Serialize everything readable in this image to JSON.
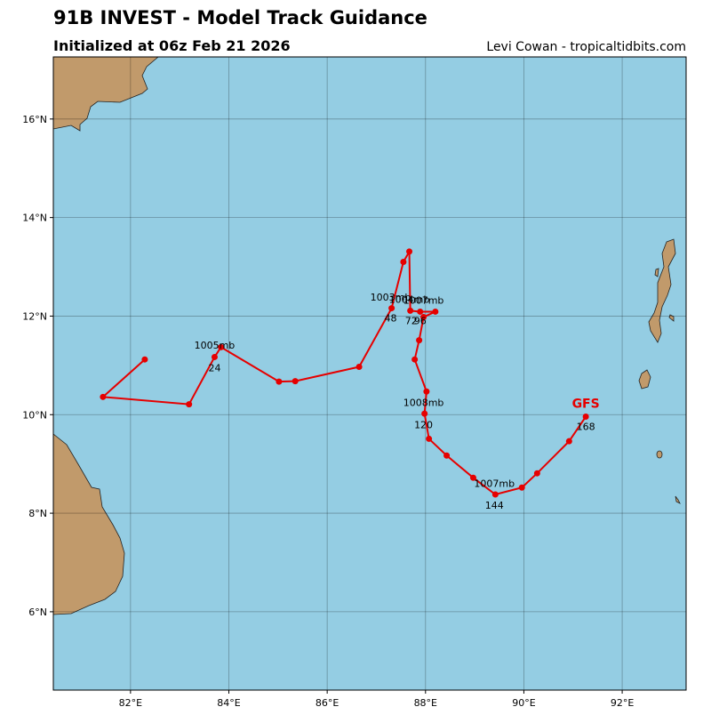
{
  "chart_data": {
    "type": "track-map",
    "title": "91B INVEST - Model Track Guidance",
    "subtitle": "Initialized at 06z Feb 21 2026",
    "credit": "Levi Cowan - tropicaltidbits.com",
    "xlim": [
      80.43,
      93.3
    ],
    "ylim": [
      4.41,
      17.26
    ],
    "xticks": [
      {
        "value": 82,
        "label": "82°E"
      },
      {
        "value": 84,
        "label": "84°E"
      },
      {
        "value": 86,
        "label": "86°E"
      },
      {
        "value": 88,
        "label": "88°E"
      },
      {
        "value": 90,
        "label": "90°E"
      },
      {
        "value": 92,
        "label": "92°E"
      }
    ],
    "yticks": [
      {
        "value": 6,
        "label": "6°N"
      },
      {
        "value": 8,
        "label": "8°N"
      },
      {
        "value": 10,
        "label": "10°N"
      },
      {
        "value": 12,
        "label": "12°N"
      },
      {
        "value": 14,
        "label": "14°N"
      },
      {
        "value": 16,
        "label": "16°N"
      }
    ],
    "grid": true,
    "series": [
      {
        "name": "GFS",
        "color": "#e60000",
        "lon": [
          82.29,
          81.44,
          83.19,
          83.71,
          83.84,
          85.02,
          85.35,
          86.65,
          87.31,
          87.55,
          87.67,
          87.69,
          87.89,
          88.2,
          87.96,
          87.87,
          87.78,
          88.02,
          87.98,
          88.07,
          88.43,
          88.97,
          89.42,
          89.96,
          90.27,
          90.92,
          91.26
        ],
        "lat": [
          11.12,
          10.36,
          10.21,
          11.17,
          11.37,
          10.67,
          10.68,
          10.97,
          12.16,
          13.1,
          13.31,
          12.11,
          12.09,
          12.09,
          11.98,
          11.51,
          11.12,
          10.47,
          10.02,
          9.51,
          9.17,
          8.72,
          8.38,
          8.52,
          8.81,
          9.46,
          9.96
        ],
        "name_lon": 91.26,
        "name_lat": 10.23
      }
    ],
    "labels": [
      {
        "text": "1005mb",
        "lon": 83.71,
        "lat": 11.41
      },
      {
        "text": "24",
        "lon": 83.71,
        "lat": 10.95
      },
      {
        "text": "1003mb",
        "lon": 87.29,
        "lat": 12.39
      },
      {
        "text": "48",
        "lon": 87.29,
        "lat": 11.96
      },
      {
        "text": "1004mb",
        "lon": 87.67,
        "lat": 12.34
      },
      {
        "text": "1007mb",
        "lon": 87.96,
        "lat": 12.32
      },
      {
        "text": "72",
        "lon": 87.71,
        "lat": 11.91
      },
      {
        "text": "96",
        "lon": 87.89,
        "lat": 11.91
      },
      {
        "text": "1008mb",
        "lon": 87.96,
        "lat": 10.25
      },
      {
        "text": "120",
        "lon": 87.96,
        "lat": 9.8
      },
      {
        "text": "1007mb",
        "lon": 89.4,
        "lat": 8.61
      },
      {
        "text": "144",
        "lon": 89.4,
        "lat": 8.16
      },
      {
        "text": "168",
        "lon": 91.26,
        "lat": 9.76
      }
    ]
  }
}
